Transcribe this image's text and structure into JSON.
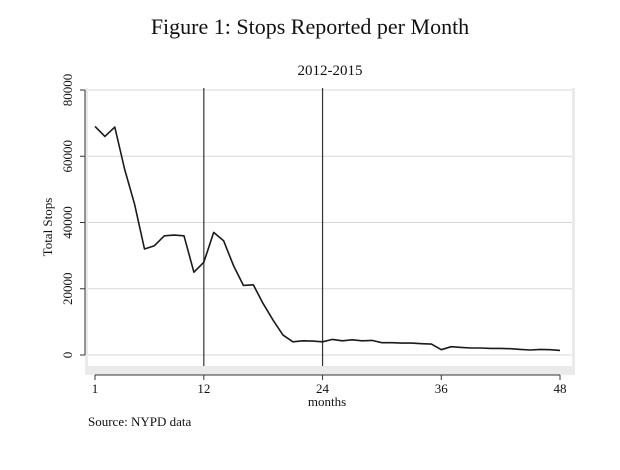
{
  "figure": {
    "title": "Figure 1: Stops Reported per Month",
    "note": "Source: NYPD data"
  },
  "chart_data": {
    "type": "line",
    "title": "2012-2015",
    "xlabel": "months",
    "ylabel": "Total Stops",
    "xlim": [
      1,
      48
    ],
    "ylim": [
      0,
      80000
    ],
    "x_ticks": [
      1,
      12,
      24,
      36,
      48
    ],
    "y_ticks": [
      0,
      20000,
      40000,
      60000,
      80000
    ],
    "grid": true,
    "reference_lines_x": [
      12,
      24
    ],
    "line_color": "#1a1a1a",
    "series": [
      {
        "x": [
          1,
          2,
          3,
          4,
          5,
          6,
          7,
          8,
          9,
          10,
          11,
          12,
          13,
          14,
          15,
          16,
          17,
          18,
          19,
          20,
          21,
          22,
          23,
          24,
          25,
          26,
          27,
          28,
          29,
          30,
          31,
          32,
          33,
          34,
          35,
          36,
          37,
          38,
          39,
          40,
          41,
          42,
          43,
          44,
          45,
          46,
          47,
          48
        ],
        "values": [
          69000,
          66000,
          68800,
          56000,
          45500,
          32000,
          33000,
          36000,
          36200,
          36000,
          25000,
          28000,
          37000,
          34500,
          27000,
          21000,
          21200,
          15500,
          10500,
          6000,
          4000,
          4300,
          4200,
          4000,
          4700,
          4300,
          4600,
          4300,
          4400,
          3700,
          3700,
          3600,
          3600,
          3400,
          3300,
          1600,
          2500,
          2300,
          2100,
          2100,
          2000,
          2000,
          1900,
          1700,
          1500,
          1700,
          1600,
          1400
        ]
      }
    ]
  }
}
